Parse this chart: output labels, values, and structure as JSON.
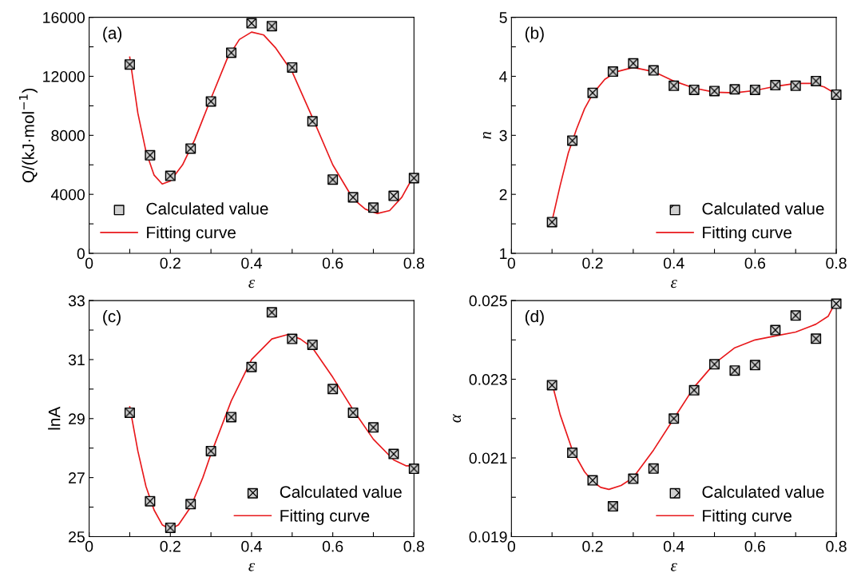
{
  "chart_data": [
    {
      "type": "scatter",
      "xlabel": "ε",
      "ylabel": "Q/(kJ·mol$^{−1}$)",
      "annotations": [
        "(a)"
      ],
      "legend": "bottom left",
      "xlim": [
        0,
        0.8
      ],
      "ylim": [
        0,
        16000
      ],
      "xticks": [
        0,
        {
          "value": 0.1,
          "label": null
        },
        {
          "value": 0.2,
          "label": "0.2"
        },
        {
          "value": 0.3,
          "label": null
        },
        {
          "value": 0.4,
          "label": "0.4"
        },
        {
          "value": 0.5,
          "label": null
        },
        {
          "value": 0.6,
          "label": "0.6"
        },
        {
          "value": 0.7,
          "label": null
        },
        {
          "value": 0.8,
          "label": "0.8"
        }
      ],
      "yticks": [
        0,
        {
          "value": 2000,
          "label": null
        },
        4000,
        {
          "value": 6000,
          "label": null
        },
        8000,
        {
          "value": 10000,
          "label": null
        },
        12000,
        {
          "value": 14000,
          "label": null
        },
        16000
      ],
      "series": [
        {
          "name": "Calculated value",
          "marker": "square",
          "color": "#000000",
          "x": [
            0.1,
            0.15,
            0.2,
            0.25,
            0.3,
            0.35,
            0.4,
            0.45,
            0.5,
            0.55,
            0.6,
            0.65,
            0.7,
            0.75,
            0.8
          ],
          "values": [
            12800,
            6650,
            5250,
            7100,
            10300,
            13600,
            15600,
            15400,
            12600,
            8950,
            5000,
            3800,
            3100,
            3900,
            5100
          ]
        },
        {
          "name": "Fitting curve",
          "type": "line",
          "line_style": "solid",
          "color": "#e8191c",
          "x": [
            0.1,
            0.12,
            0.14,
            0.16,
            0.18,
            0.2,
            0.23,
            0.26,
            0.3,
            0.34,
            0.37,
            0.4,
            0.43,
            0.46,
            0.5,
            0.55,
            0.6,
            0.65,
            0.68,
            0.71,
            0.74,
            0.77,
            0.8
          ],
          "values": [
            13300,
            9500,
            6900,
            5300,
            4700,
            4900,
            6000,
            7700,
            10500,
            13200,
            14500,
            15000,
            14800,
            13900,
            12300,
            9200,
            6000,
            3700,
            3000,
            2700,
            2900,
            3800,
            5300
          ]
        }
      ]
    },
    {
      "type": "scatter",
      "xlabel": "ε",
      "ylabel": "n",
      "annotations": [
        "(b)"
      ],
      "legend": "bottom right",
      "xlim": [
        0,
        0.8
      ],
      "ylim": [
        1,
        5
      ],
      "xticks": [
        0,
        {
          "value": 0.1,
          "label": null
        },
        {
          "value": 0.2,
          "label": "0.2"
        },
        {
          "value": 0.3,
          "label": null
        },
        {
          "value": 0.4,
          "label": "0.4"
        },
        {
          "value": 0.5,
          "label": null
        },
        {
          "value": 0.6,
          "label": "0.6"
        },
        {
          "value": 0.7,
          "label": null
        },
        {
          "value": 0.8,
          "label": "0.8"
        }
      ],
      "yticks": [
        1,
        {
          "value": 1.5,
          "label": null
        },
        2,
        {
          "value": 2.5,
          "label": null
        },
        3,
        {
          "value": 3.5,
          "label": null
        },
        4,
        {
          "value": 4.5,
          "label": null
        },
        5
      ],
      "series": [
        {
          "name": "Calculated value",
          "marker": "square",
          "color": "#000000",
          "x": [
            0.1,
            0.15,
            0.2,
            0.25,
            0.3,
            0.35,
            0.4,
            0.45,
            0.5,
            0.55,
            0.6,
            0.65,
            0.7,
            0.75,
            0.8
          ],
          "values": [
            1.53,
            2.91,
            3.72,
            4.08,
            4.22,
            4.1,
            3.84,
            3.77,
            3.75,
            3.78,
            3.77,
            3.85,
            3.84,
            3.92,
            3.69
          ]
        },
        {
          "name": "Fitting curve",
          "type": "line",
          "line_style": "solid",
          "color": "#e8191c",
          "x": [
            0.1,
            0.12,
            0.14,
            0.16,
            0.18,
            0.2,
            0.23,
            0.26,
            0.3,
            0.35,
            0.4,
            0.45,
            0.5,
            0.55,
            0.6,
            0.65,
            0.7,
            0.74,
            0.77,
            0.8
          ],
          "values": [
            1.55,
            2.15,
            2.7,
            3.1,
            3.45,
            3.7,
            3.95,
            4.08,
            4.15,
            4.08,
            3.92,
            3.8,
            3.73,
            3.72,
            3.76,
            3.83,
            3.88,
            3.88,
            3.82,
            3.7
          ]
        }
      ]
    },
    {
      "type": "scatter",
      "xlabel": "ε",
      "ylabel": "lnA",
      "annotations": [
        "(c)"
      ],
      "legend": "bottom right",
      "xlim": [
        0,
        0.8
      ],
      "ylim": [
        25,
        33
      ],
      "xticks": [
        0,
        {
          "value": 0.1,
          "label": null
        },
        {
          "value": 0.2,
          "label": "0.2"
        },
        {
          "value": 0.3,
          "label": null
        },
        {
          "value": 0.4,
          "label": "0.4"
        },
        {
          "value": 0.5,
          "label": null
        },
        {
          "value": 0.6,
          "label": "0.6"
        },
        {
          "value": 0.7,
          "label": null
        },
        {
          "value": 0.8,
          "label": "0.8"
        }
      ],
      "yticks": [
        25,
        {
          "value": 26,
          "label": null
        },
        27,
        {
          "value": 28,
          "label": null
        },
        29,
        {
          "value": 30,
          "label": null
        },
        31,
        {
          "value": 32,
          "label": null
        },
        33
      ],
      "series": [
        {
          "name": "Calculated value",
          "marker": "square",
          "color": "#000000",
          "x": [
            0.1,
            0.15,
            0.2,
            0.25,
            0.3,
            0.35,
            0.4,
            0.45,
            0.5,
            0.55,
            0.6,
            0.65,
            0.7,
            0.75,
            0.8
          ],
          "values": [
            29.2,
            26.2,
            25.3,
            26.1,
            27.9,
            29.05,
            30.75,
            32.6,
            31.7,
            31.5,
            30.0,
            29.2,
            28.7,
            27.8,
            27.3
          ]
        },
        {
          "name": "Fitting curve",
          "type": "line",
          "line_style": "solid",
          "color": "#e8191c",
          "x": [
            0.1,
            0.12,
            0.14,
            0.16,
            0.18,
            0.2,
            0.22,
            0.25,
            0.28,
            0.3,
            0.35,
            0.4,
            0.45,
            0.49,
            0.52,
            0.55,
            0.6,
            0.65,
            0.7,
            0.75,
            0.78,
            0.8
          ],
          "values": [
            29.4,
            27.9,
            26.7,
            25.9,
            25.4,
            25.25,
            25.4,
            26.0,
            27.0,
            27.8,
            29.6,
            31.0,
            31.7,
            31.85,
            31.7,
            31.4,
            30.4,
            29.3,
            28.3,
            27.6,
            27.4,
            27.4
          ]
        }
      ]
    },
    {
      "type": "scatter",
      "xlabel": "ε",
      "ylabel": "α",
      "annotations": [
        "(d)"
      ],
      "legend": "bottom right",
      "xlim": [
        0,
        0.8
      ],
      "ylim": [
        0.019,
        0.025
      ],
      "xticks": [
        0,
        {
          "value": 0.1,
          "label": null
        },
        {
          "value": 0.2,
          "label": "0.2"
        },
        {
          "value": 0.3,
          "label": null
        },
        {
          "value": 0.4,
          "label": "0.4"
        },
        {
          "value": 0.5,
          "label": null
        },
        {
          "value": 0.6,
          "label": "0.6"
        },
        {
          "value": 0.7,
          "label": null
        },
        {
          "value": 0.8,
          "label": "0.8"
        }
      ],
      "yticks": [
        0.019,
        {
          "value": 0.02,
          "label": null
        },
        0.021,
        {
          "value": 0.022,
          "label": null
        },
        0.023,
        {
          "value": 0.024,
          "label": null
        },
        0.025
      ],
      "series": [
        {
          "name": "Calculated value",
          "marker": "square",
          "color": "#000000",
          "x": [
            0.1,
            0.15,
            0.2,
            0.25,
            0.3,
            0.35,
            0.4,
            0.45,
            0.5,
            0.55,
            0.6,
            0.65,
            0.7,
            0.75,
            0.8
          ],
          "values": [
            0.02285,
            0.02113,
            0.02043,
            0.01977,
            0.02047,
            0.02073,
            0.022,
            0.02272,
            0.02338,
            0.02322,
            0.02336,
            0.02425,
            0.02462,
            0.02403,
            0.02492
          ]
        },
        {
          "name": "Fitting curve",
          "type": "line",
          "line_style": "solid",
          "color": "#e8191c",
          "x": [
            0.1,
            0.12,
            0.15,
            0.18,
            0.2,
            0.22,
            0.24,
            0.27,
            0.3,
            0.35,
            0.4,
            0.45,
            0.5,
            0.55,
            0.6,
            0.65,
            0.7,
            0.75,
            0.78,
            0.8
          ],
          "values": [
            0.0229,
            0.0221,
            0.0212,
            0.02065,
            0.0204,
            0.02025,
            0.0202,
            0.0203,
            0.0205,
            0.0212,
            0.022,
            0.0228,
            0.0234,
            0.0238,
            0.024,
            0.0241,
            0.0242,
            0.0244,
            0.0246,
            0.025
          ]
        }
      ]
    }
  ]
}
